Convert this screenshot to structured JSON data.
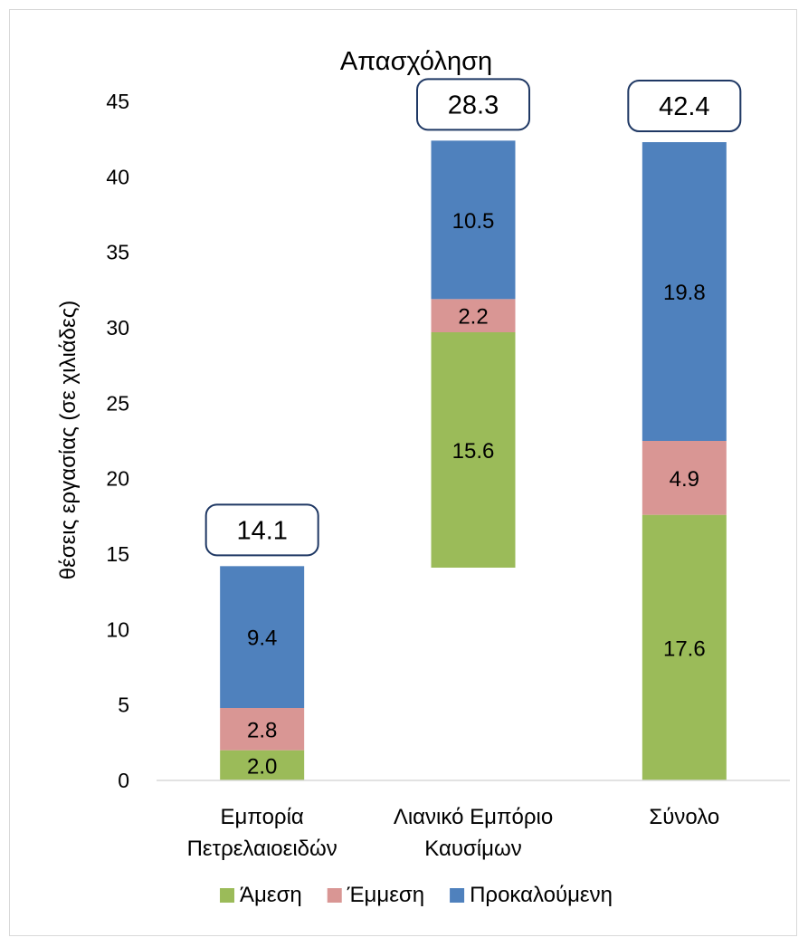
{
  "chart_data": {
    "type": "bar",
    "stacking": "waterfall",
    "title": "Απασχόληση",
    "ylabel": "θέσεις εργασίας (σε χιλιάδες)",
    "xlabel": "",
    "ylim": [
      0,
      45
    ],
    "yticks": [
      0,
      5,
      10,
      15,
      20,
      25,
      30,
      35,
      40,
      45
    ],
    "grid": false,
    "legend_position": "bottom",
    "categories": [
      [
        "Εμπορία",
        "Πετρελαιοειδών"
      ],
      [
        "Λιανικό Εμπόριο",
        "Καυσίμων"
      ],
      [
        "Σύνολο"
      ]
    ],
    "bar_base": [
      0,
      14.1,
      0
    ],
    "series": [
      {
        "name": "Άμεση",
        "color": "#9bbb59",
        "values": [
          2.0,
          15.6,
          17.6
        ]
      },
      {
        "name": "Έμμεση",
        "color": "#d99694",
        "values": [
          2.8,
          2.2,
          4.9
        ]
      },
      {
        "name": "Προκαλούμενη",
        "color": "#4f81bd",
        "values": [
          9.4,
          10.5,
          19.8
        ]
      }
    ],
    "totals": [
      14.1,
      28.3,
      42.4
    ]
  }
}
